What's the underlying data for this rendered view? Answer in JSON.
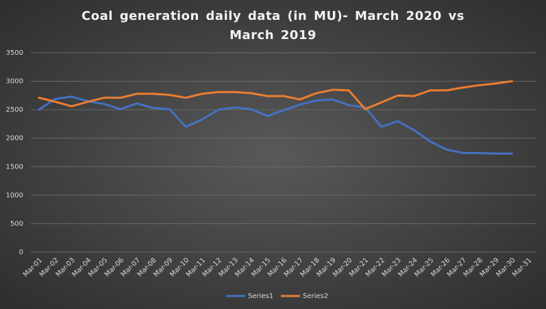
{
  "chart_data": {
    "type": "line",
    "title": "Coal generation daily data (in MU)- March 2020 vs March 2019",
    "categories": [
      "Mar-01",
      "Mar-02",
      "Mar-03",
      "Mar-04",
      "Mar-05",
      "Mar-06",
      "Mar-07",
      "Mar-08",
      "Mar-09",
      "Mar-10",
      "Mar-11",
      "Mar-12",
      "Mar-13",
      "Mar-14",
      "Mar-15",
      "Mar-16",
      "Mar-17",
      "Mar-18",
      "Mar-19",
      "Mar-20",
      "Mar-21",
      "Mar-22",
      "Mar-23",
      "Mar-24",
      "Mar-25",
      "Mar-26",
      "Mar-27",
      "Mar-28",
      "Mar-29",
      "Mar-30",
      "Mar-31"
    ],
    "series": [
      {
        "name": "Series1",
        "color": "#4472c4",
        "values": [
          2500,
          2690,
          2730,
          2650,
          2600,
          2510,
          2610,
          2530,
          2510,
          2200,
          2330,
          2500,
          2540,
          2510,
          2390,
          2490,
          2590,
          2660,
          2680,
          2580,
          2540,
          2200,
          2300,
          2140,
          1940,
          1800,
          1740,
          1740,
          1730,
          1730,
          null
        ]
      },
      {
        "name": "Series2",
        "color": "#ed7d31",
        "values": [
          2710,
          2640,
          2560,
          2640,
          2710,
          2710,
          2780,
          2780,
          2760,
          2710,
          2780,
          2810,
          2810,
          2790,
          2740,
          2740,
          2680,
          2790,
          2850,
          2840,
          2510,
          2630,
          2750,
          2740,
          2840,
          2840,
          2890,
          2930,
          2960,
          3000,
          null
        ]
      }
    ],
    "ylim": [
      0,
      3500
    ],
    "yticks": [
      0,
      500,
      1000,
      1500,
      2000,
      2500,
      3000,
      3500
    ],
    "grid": true,
    "legend": "bottom"
  }
}
